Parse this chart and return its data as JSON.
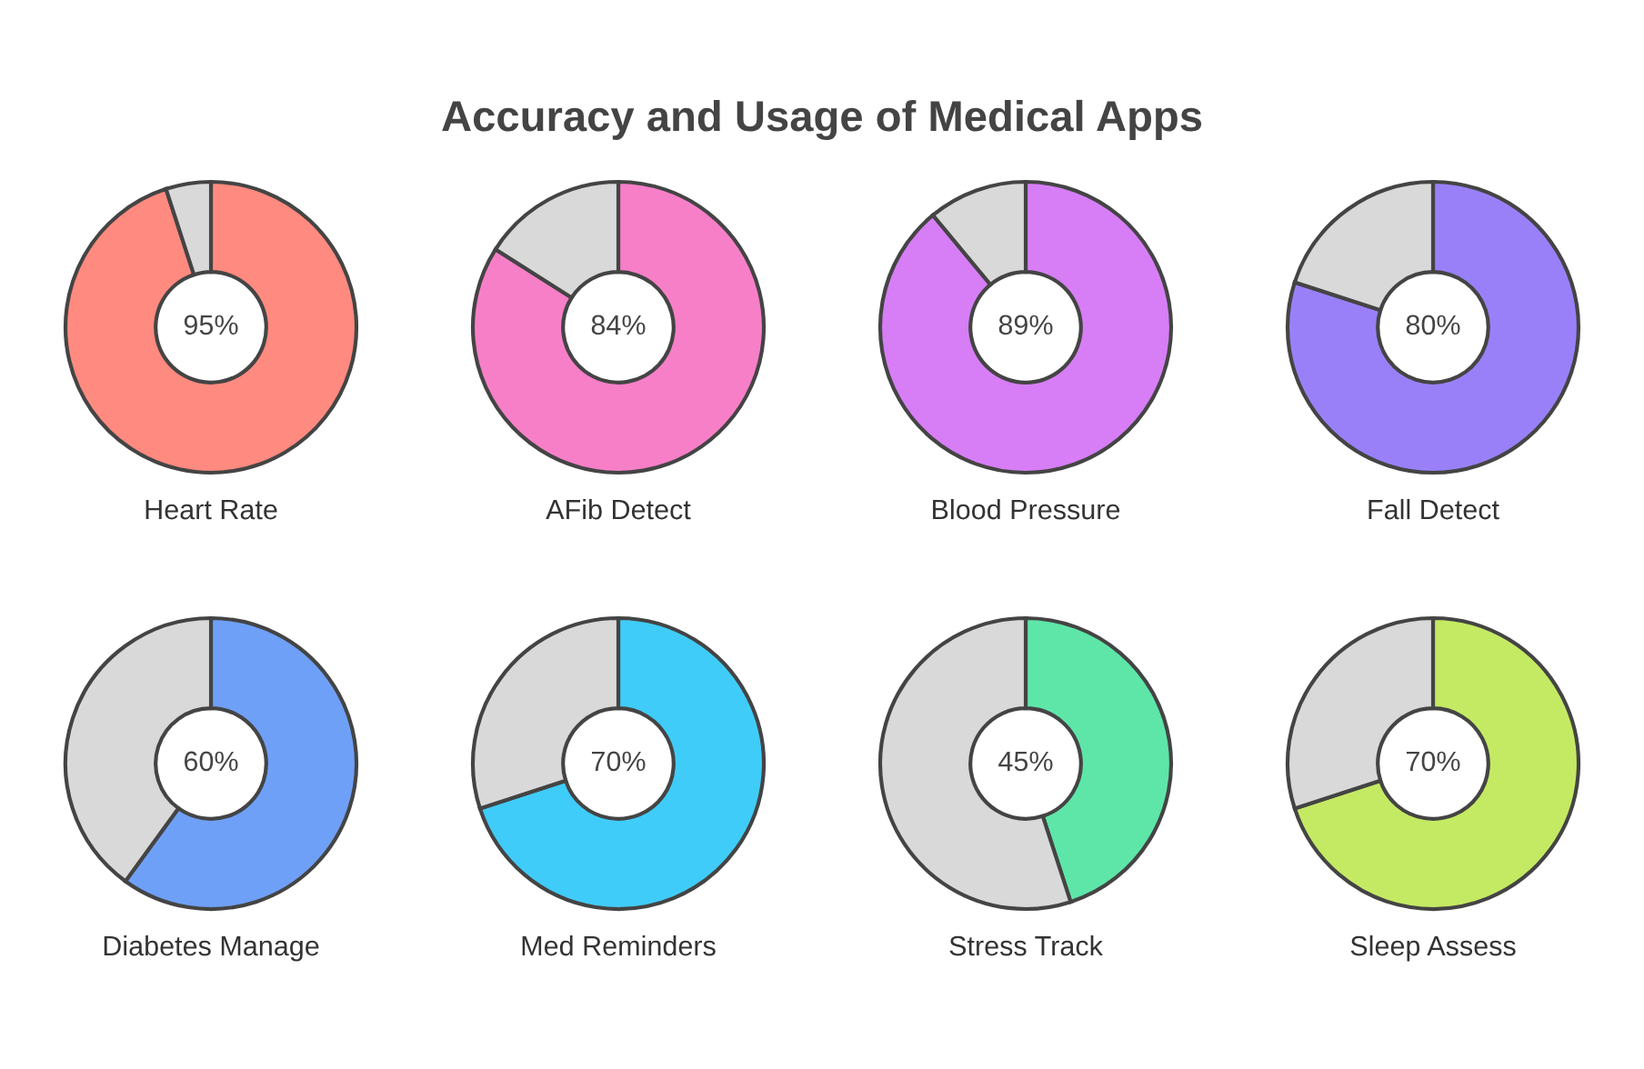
{
  "chart_data": [
    {
      "type": "other",
      "title": "Accuracy and Usage of Medical Apps"
    },
    {
      "type": "donut",
      "title": "Heart Rate",
      "categories": [
        null,
        null
      ],
      "values": [
        95,
        5
      ],
      "colors": [
        "#ff8a80",
        "#d9d9d9"
      ],
      "value_labels": [
        "95%",
        null
      ]
    },
    {
      "type": "donut",
      "title": "AFib Detect",
      "categories": [
        null,
        null
      ],
      "values": [
        84,
        16
      ],
      "colors": [
        "#f77fc8",
        "#d9d9d9"
      ],
      "value_labels": [
        "84%",
        null
      ]
    },
    {
      "type": "donut",
      "title": "Blood Pressure",
      "categories": [
        null,
        null
      ],
      "values": [
        89,
        11
      ],
      "colors": [
        "#d77ef6",
        "#d9d9d9"
      ],
      "value_labels": [
        "89%",
        null
      ]
    },
    {
      "type": "donut",
      "title": "Fall Detect",
      "categories": [
        null,
        null
      ],
      "values": [
        80,
        20
      ],
      "colors": [
        "#9a80f8",
        "#d9d9d9"
      ],
      "value_labels": [
        "80%",
        null
      ]
    },
    {
      "type": "donut",
      "title": "Diabetes Manage",
      "categories": [
        null,
        null
      ],
      "values": [
        60,
        40
      ],
      "colors": [
        "#6fa0f8",
        "#d9d9d9"
      ],
      "value_labels": [
        "60%",
        null
      ]
    },
    {
      "type": "donut",
      "title": "Med Reminders",
      "categories": [
        null,
        null
      ],
      "values": [
        70,
        30
      ],
      "colors": [
        "#40ccf8",
        "#d9d9d9"
      ],
      "value_labels": [
        "70%",
        null
      ]
    },
    {
      "type": "donut",
      "title": "Stress Track",
      "categories": [
        null,
        null
      ],
      "values": [
        45,
        55
      ],
      "colors": [
        "#5ee6a8",
        "#d9d9d9"
      ],
      "value_labels": [
        "45%",
        null
      ]
    },
    {
      "type": "donut",
      "title": "Sleep Assess",
      "categories": [
        null,
        null
      ],
      "values": [
        70,
        30
      ],
      "colors": [
        "#c4ea64",
        "#d9d9d9"
      ],
      "value_labels": [
        "70%",
        null
      ]
    }
  ]
}
